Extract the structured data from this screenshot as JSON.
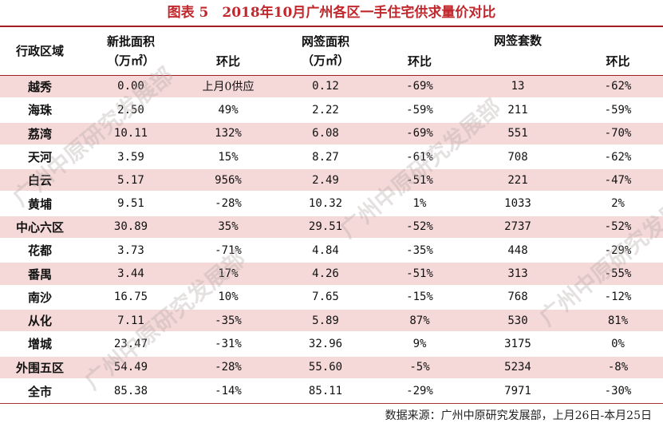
{
  "title": "图表 5　2018年10月广州各区一手住宅供求量价对比",
  "headers": {
    "region": "行政区域",
    "new_area_line1": "新批面积",
    "new_area_line2": "（万㎡）",
    "mom1": "环比",
    "signed_area_line1": "网签面积",
    "signed_area_line2": "（万㎡）",
    "mom2": "环比",
    "signed_units": "网签套数",
    "mom3": "环比"
  },
  "rows": [
    {
      "region": "越秀",
      "new_area": "0.00",
      "mom1": "上月0供应",
      "signed_area": "0.12",
      "mom2": "-69%",
      "units": "13",
      "mom3": "-62%"
    },
    {
      "region": "海珠",
      "new_area": "2.50",
      "mom1": "49%",
      "signed_area": "2.22",
      "mom2": "-59%",
      "units": "211",
      "mom3": "-59%"
    },
    {
      "region": "荔湾",
      "new_area": "10.11",
      "mom1": "132%",
      "signed_area": "6.08",
      "mom2": "-69%",
      "units": "551",
      "mom3": "-70%"
    },
    {
      "region": "天河",
      "new_area": "3.59",
      "mom1": "15%",
      "signed_area": "8.27",
      "mom2": "-61%",
      "units": "708",
      "mom3": "-62%"
    },
    {
      "region": "白云",
      "new_area": "5.17",
      "mom1": "956%",
      "signed_area": "2.49",
      "mom2": "-51%",
      "units": "221",
      "mom3": "-47%"
    },
    {
      "region": "黄埔",
      "new_area": "9.51",
      "mom1": "-28%",
      "signed_area": "10.32",
      "mom2": "1%",
      "units": "1033",
      "mom3": "2%"
    },
    {
      "region": "中心六区",
      "new_area": "30.89",
      "mom1": "35%",
      "signed_area": "29.51",
      "mom2": "-52%",
      "units": "2737",
      "mom3": "-52%"
    },
    {
      "region": "花都",
      "new_area": "3.73",
      "mom1": "-71%",
      "signed_area": "4.84",
      "mom2": "-35%",
      "units": "448",
      "mom3": "-29%"
    },
    {
      "region": "番禺",
      "new_area": "3.44",
      "mom1": "17%",
      "signed_area": "4.26",
      "mom2": "-51%",
      "units": "313",
      "mom3": "-55%"
    },
    {
      "region": "南沙",
      "new_area": "16.75",
      "mom1": "10%",
      "signed_area": "7.65",
      "mom2": "-15%",
      "units": "768",
      "mom3": "-12%"
    },
    {
      "region": "从化",
      "new_area": "7.11",
      "mom1": "-35%",
      "signed_area": "5.89",
      "mom2": "87%",
      "units": "530",
      "mom3": "81%"
    },
    {
      "region": "增城",
      "new_area": "23.47",
      "mom1": "-31%",
      "signed_area": "32.96",
      "mom2": "9%",
      "units": "3175",
      "mom3": "0%"
    },
    {
      "region": "外围五区",
      "new_area": "54.49",
      "mom1": "-28%",
      "signed_area": "55.60",
      "mom2": "-5%",
      "units": "5234",
      "mom3": "-8%"
    },
    {
      "region": "全市",
      "new_area": "85.38",
      "mom1": "-14%",
      "signed_area": "85.11",
      "mom2": "-29%",
      "units": "7971",
      "mom3": "-30%"
    }
  ],
  "source": "数据来源：广州中原研究发展部，上月26日-本月25日",
  "watermark": "广州中原研究发展部",
  "colors": {
    "title": "#c0282d",
    "rule": "#a01d22",
    "shade": "#f5d9d8"
  }
}
